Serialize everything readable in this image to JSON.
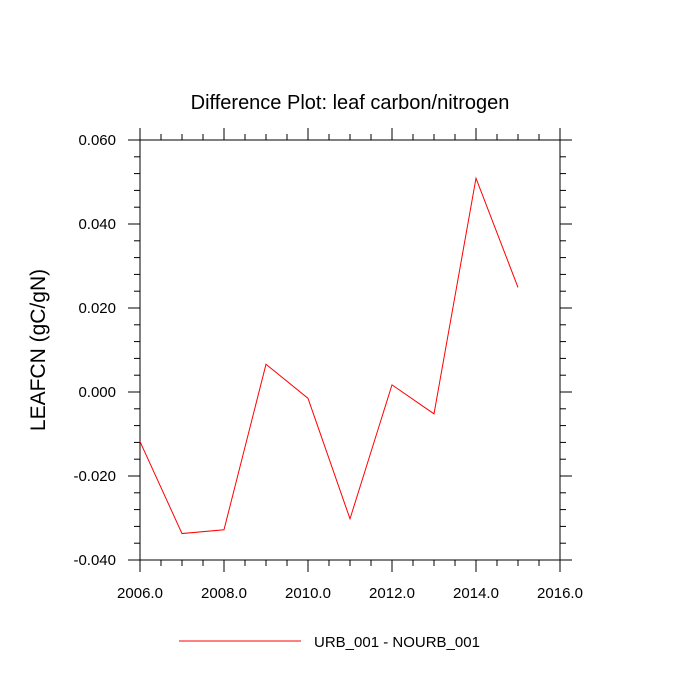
{
  "chart_data": {
    "type": "line",
    "title": "Difference Plot: leaf carbon/nitrogen",
    "xlabel": "",
    "ylabel": "LEAFCN  (gC/gN)",
    "xlim": [
      2006,
      2016
    ],
    "ylim": [
      -0.04,
      0.06
    ],
    "x_ticks": [
      "2006.0",
      "2008.0",
      "2010.0",
      "2012.0",
      "2014.0",
      "2016.0"
    ],
    "y_ticks": [
      "-0.040",
      "-0.020",
      "0.000",
      "0.020",
      "0.040",
      "0.060"
    ],
    "grid": false,
    "legend_position": "bottom-center",
    "series": [
      {
        "name": "URB_001 - NOURB_001",
        "color": "#ff0000",
        "x": [
          2006,
          2007,
          2008,
          2009,
          2010,
          2011,
          2012,
          2013,
          2014,
          2015
        ],
        "y": [
          -0.0118,
          -0.0337,
          -0.0328,
          0.0066,
          -0.0015,
          -0.0302,
          0.0017,
          -0.0052,
          0.0509,
          0.0249
        ]
      }
    ]
  }
}
